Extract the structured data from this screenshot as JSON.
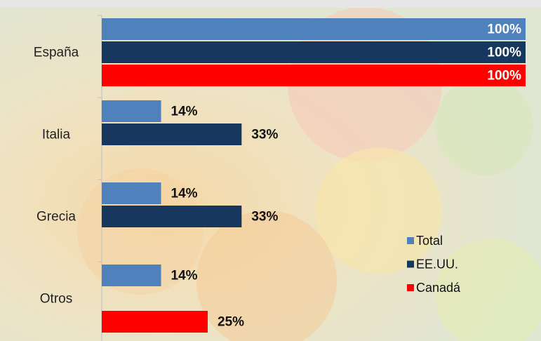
{
  "chart_data": {
    "type": "bar",
    "orientation": "horizontal",
    "categories": [
      "España",
      "Italia",
      "Grecia",
      "Otros"
    ],
    "series": [
      {
        "name": "Total",
        "color": "#4f81bd",
        "values": [
          100,
          14,
          14,
          14
        ],
        "value_labels": [
          "100%",
          "14%",
          "14%",
          "14%"
        ]
      },
      {
        "name": "EE.UU.",
        "color": "#17375e",
        "values": [
          100,
          33,
          33,
          null
        ],
        "value_labels": [
          "100%",
          "33%",
          "33%",
          null
        ]
      },
      {
        "name": "Canadá",
        "color": "#ff0000",
        "values": [
          100,
          null,
          null,
          25
        ],
        "value_labels": [
          "100%",
          null,
          null,
          "25%"
        ]
      }
    ],
    "xlim": [
      0,
      100
    ],
    "legend": "lower-right"
  }
}
